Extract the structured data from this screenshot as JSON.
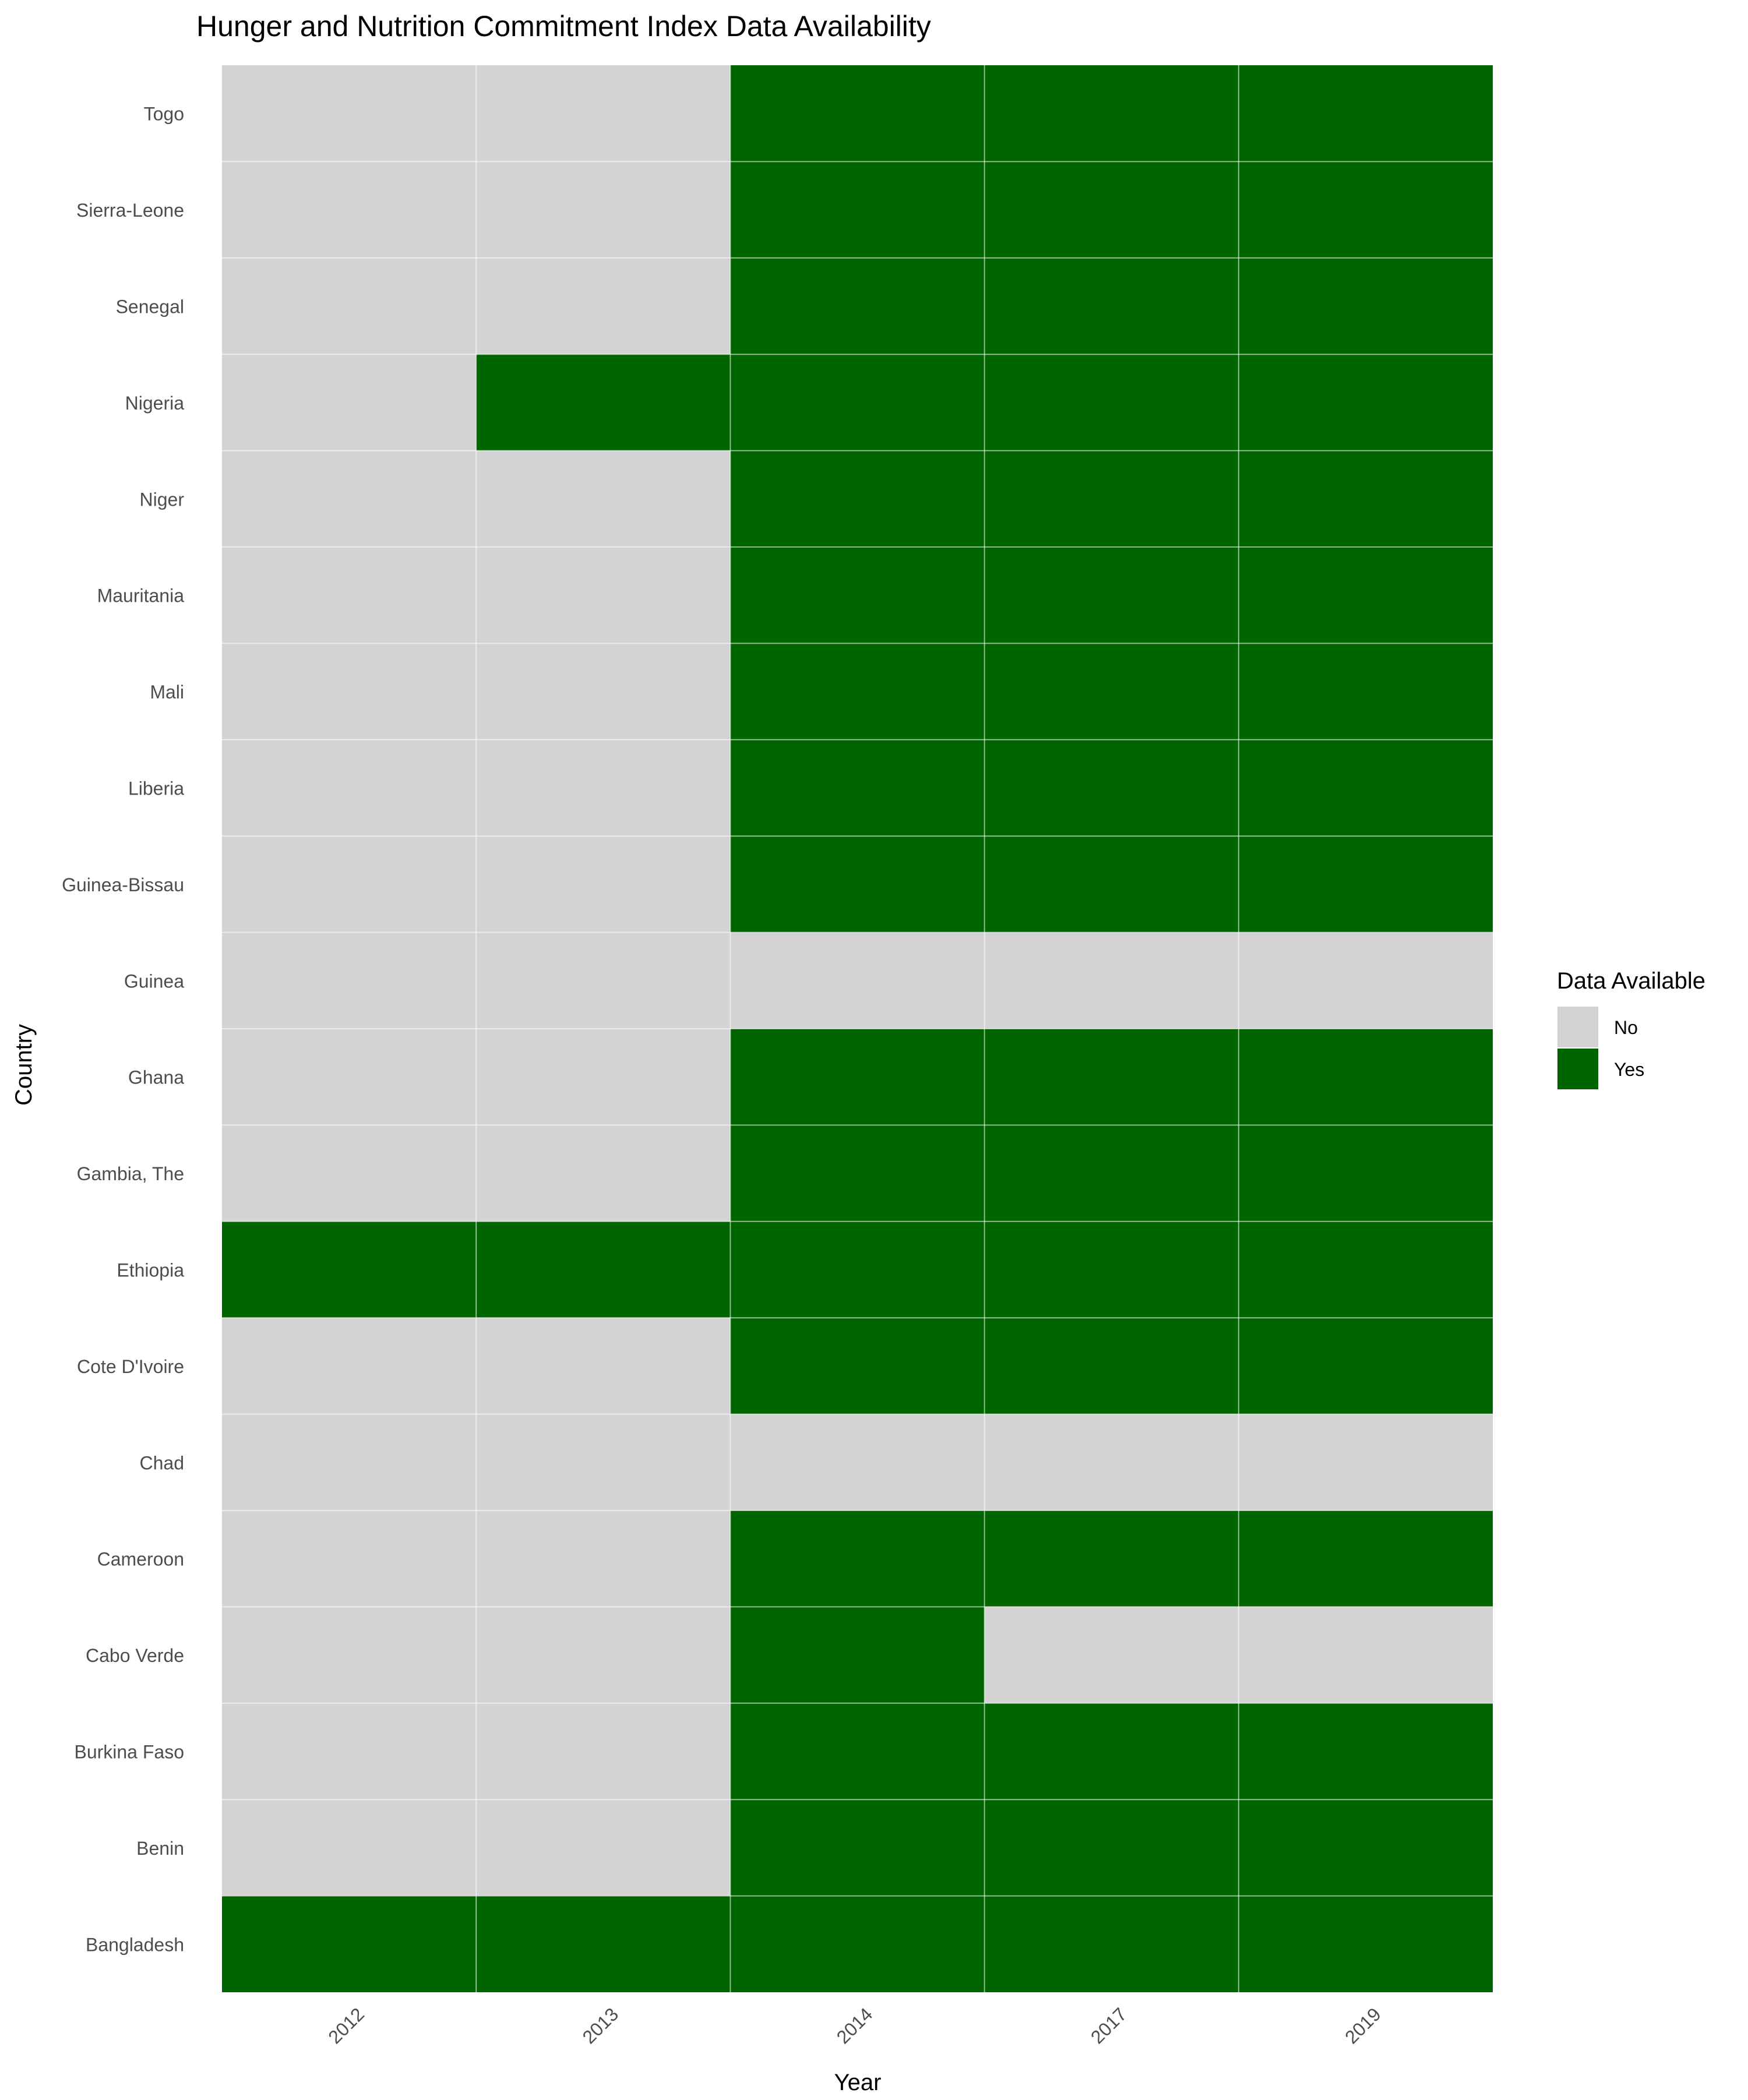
{
  "chart_data": {
    "type": "heatmap",
    "title": "Hunger and Nutrition Commitment Index Data Availability",
    "xlabel": "Year",
    "ylabel": "Country",
    "x": [
      "2012",
      "2013",
      "2014",
      "2017",
      "2019"
    ],
    "y": [
      "Togo",
      "Sierra-Leone",
      "Senegal",
      "Nigeria",
      "Niger",
      "Mauritania",
      "Mali",
      "Liberia",
      "Guinea-Bissau",
      "Guinea",
      "Ghana",
      "Gambia, The",
      "Ethiopia",
      "Cote D'Ivoire",
      "Chad",
      "Cameroon",
      "Cabo Verde",
      "Burkina Faso",
      "Benin",
      "Bangladesh"
    ],
    "values": [
      [
        "No",
        "No",
        "Yes",
        "Yes",
        "Yes"
      ],
      [
        "No",
        "No",
        "Yes",
        "Yes",
        "Yes"
      ],
      [
        "No",
        "No",
        "Yes",
        "Yes",
        "Yes"
      ],
      [
        "No",
        "Yes",
        "Yes",
        "Yes",
        "Yes"
      ],
      [
        "No",
        "No",
        "Yes",
        "Yes",
        "Yes"
      ],
      [
        "No",
        "No",
        "Yes",
        "Yes",
        "Yes"
      ],
      [
        "No",
        "No",
        "Yes",
        "Yes",
        "Yes"
      ],
      [
        "No",
        "No",
        "Yes",
        "Yes",
        "Yes"
      ],
      [
        "No",
        "No",
        "Yes",
        "Yes",
        "Yes"
      ],
      [
        "No",
        "No",
        "No",
        "No",
        "No"
      ],
      [
        "No",
        "No",
        "Yes",
        "Yes",
        "Yes"
      ],
      [
        "No",
        "No",
        "Yes",
        "Yes",
        "Yes"
      ],
      [
        "Yes",
        "Yes",
        "Yes",
        "Yes",
        "Yes"
      ],
      [
        "No",
        "No",
        "Yes",
        "Yes",
        "Yes"
      ],
      [
        "No",
        "No",
        "No",
        "No",
        "No"
      ],
      [
        "No",
        "No",
        "Yes",
        "Yes",
        "Yes"
      ],
      [
        "No",
        "No",
        "Yes",
        "No",
        "No"
      ],
      [
        "No",
        "No",
        "Yes",
        "Yes",
        "Yes"
      ],
      [
        "No",
        "No",
        "Yes",
        "Yes",
        "Yes"
      ],
      [
        "Yes",
        "Yes",
        "Yes",
        "Yes",
        "Yes"
      ]
    ],
    "legend": {
      "title": "Data Available",
      "position": "right",
      "entries": [
        {
          "label": "No",
          "color": "#d3d3d3"
        },
        {
          "label": "Yes",
          "color": "#006400"
        }
      ]
    },
    "grid": true
  }
}
